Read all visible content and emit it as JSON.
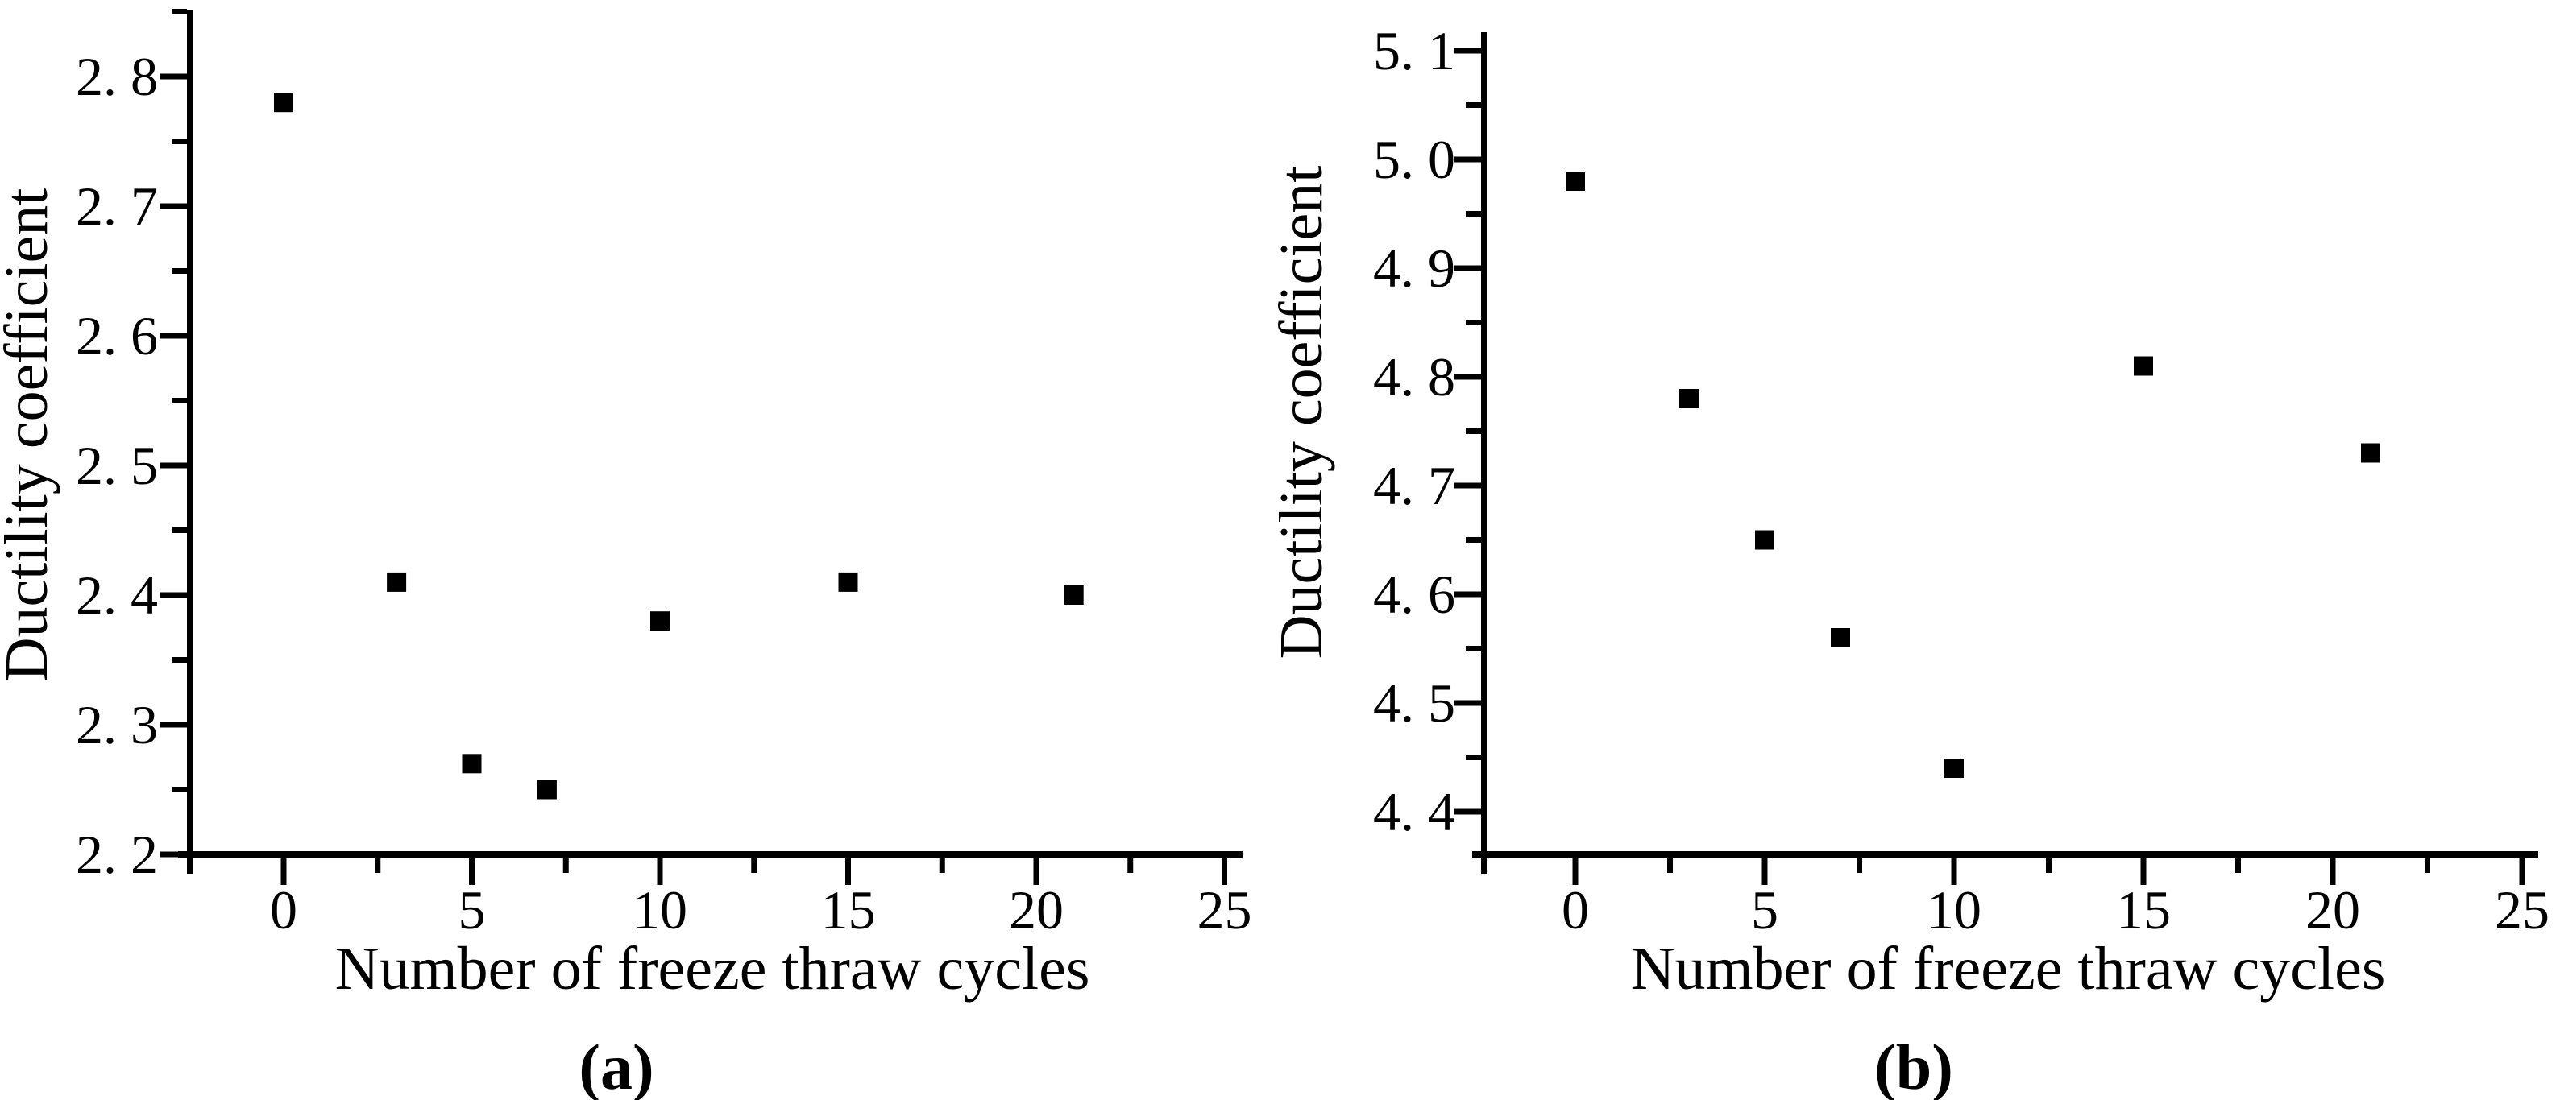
{
  "figure": {
    "background": "#ffffff",
    "ink": "#000000",
    "marker_shape": "filled-square",
    "panel_captions": [
      "(a)",
      "(b)"
    ]
  },
  "chart_data": [
    {
      "type": "scatter",
      "panel_caption": "(a)",
      "title": "",
      "xlabel": "Number of freeze thraw cycles",
      "ylabel": "Ductility coefficient",
      "x": [
        0,
        3,
        5,
        7,
        10,
        15,
        21
      ],
      "y": [
        2.78,
        2.41,
        2.27,
        2.25,
        2.38,
        2.41,
        2.4
      ],
      "xlim": [
        -2.5,
        25.5
      ],
      "ylim": [
        2.2,
        2.85
      ],
      "x_major_ticks": [
        0,
        5,
        10,
        15,
        20,
        25
      ],
      "x_tick_labels": [
        "0",
        "5",
        "10",
        "15",
        "20",
        "25"
      ],
      "x_minor_ticks": [
        2.5,
        7.5,
        12.5,
        17.5,
        22.5
      ],
      "y_major_ticks": [
        2.2,
        2.3,
        2.4,
        2.5,
        2.6,
        2.7,
        2.8
      ],
      "y_tick_labels": [
        "2. 2",
        "2. 3",
        "2. 4",
        "2. 5",
        "2. 6",
        "2. 7",
        "2. 8"
      ],
      "y_minor_ticks": [
        2.25,
        2.35,
        2.45,
        2.55,
        2.65,
        2.75,
        2.85
      ],
      "grid": false,
      "legend": "none",
      "marker": "filled-square"
    },
    {
      "type": "scatter",
      "panel_caption": "(b)",
      "title": "",
      "xlabel": "Number of freeze thraw cycles",
      "ylabel": "Ductility coefficient",
      "x": [
        0,
        3,
        5,
        7,
        10,
        15,
        21
      ],
      "y": [
        4.98,
        4.78,
        4.65,
        4.56,
        4.44,
        4.81,
        4.73
      ],
      "xlim": [
        -2.5,
        25.5
      ],
      "ylim": [
        4.33,
        5.15
      ],
      "x_major_ticks": [
        0,
        5,
        10,
        15,
        20,
        25
      ],
      "x_tick_labels": [
        "0",
        "5",
        "10",
        "15",
        "20",
        "25"
      ],
      "x_minor_ticks": [
        2.5,
        7.5,
        12.5,
        17.5,
        22.5
      ],
      "y_major_ticks": [
        4.4,
        4.5,
        4.6,
        4.7,
        4.8,
        4.9,
        5.0,
        5.1
      ],
      "y_tick_labels": [
        "4. 4",
        "4. 5",
        "4. 6",
        "4. 7",
        "4. 8",
        "4. 9",
        "5. 0",
        "5. 1"
      ],
      "y_minor_ticks": [
        4.45,
        4.55,
        4.65,
        4.75,
        4.85,
        4.95,
        5.05
      ],
      "grid": false,
      "legend": "none",
      "marker": "filled-square"
    }
  ]
}
